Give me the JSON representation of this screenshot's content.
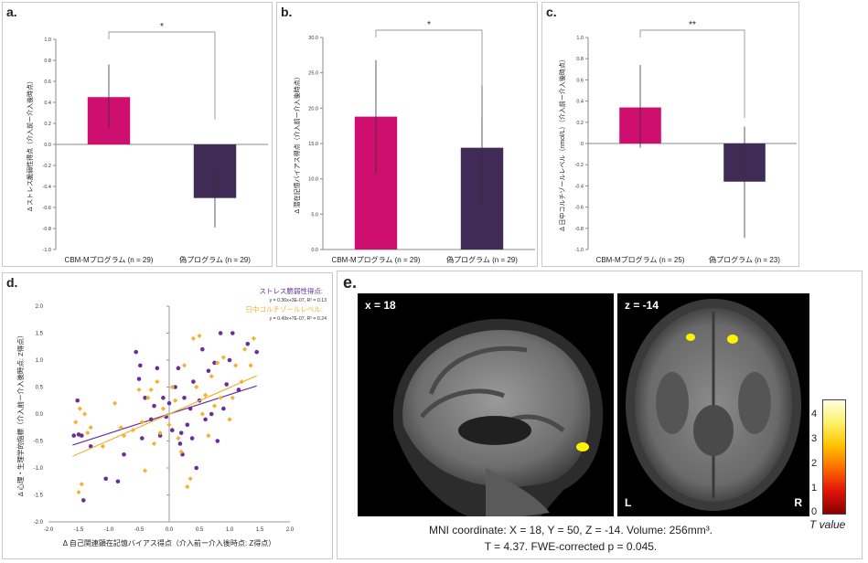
{
  "panels": {
    "a": {
      "label": "a."
    },
    "b": {
      "label": "b."
    },
    "c": {
      "label": "c."
    },
    "d": {
      "label": "d."
    },
    "e": {
      "label": "e."
    }
  },
  "chart_data": [
    {
      "id": "a",
      "type": "bar",
      "categories": [
        "CBM-Mプログラム (n = 29)",
        "偽プログラム (n = 29)"
      ],
      "values": [
        0.45,
        -0.51
      ],
      "error": [
        [
          0.15,
          0.76
        ],
        [
          -0.79,
          -0.23
        ]
      ],
      "colors": [
        "#cf0f6f",
        "#3f2b56"
      ],
      "ylabel": "Δ ストレス脆弱性得点（介入前ー介入後時点）",
      "ylim": [
        -1.0,
        1.0
      ],
      "yticks": [
        "1.0",
        "0.8",
        "0.6",
        "0.4",
        "0.2",
        "0.0",
        "-0.2",
        "-0.4",
        "-0.6",
        "-0.8",
        "-1.0"
      ],
      "significance": "*"
    },
    {
      "id": "b",
      "type": "bar",
      "categories": [
        "CBM-Mプログラム (n = 29)",
        "偽プログラム (n = 29)"
      ],
      "values": [
        18.8,
        14.4
      ],
      "error": [
        [
          10.8,
          26.8
        ],
        [
          5.6,
          23.2
        ]
      ],
      "colors": [
        "#cf0f6f",
        "#3f2b56"
      ],
      "ylabel": "Δ 潜在記憶バイアス得点（介入前ー介入後時点）",
      "ylim": [
        0,
        30
      ],
      "yticks": [
        "30.0",
        "25.0",
        "20.0",
        "15.0",
        "10.0",
        "5.0",
        "0.0"
      ],
      "significance": "*"
    },
    {
      "id": "c",
      "type": "bar",
      "categories": [
        "CBM-Mプログラム (n = 25)",
        "偽プログラム (n = 23)"
      ],
      "values": [
        0.34,
        -0.36
      ],
      "error": [
        [
          -0.04,
          0.74
        ],
        [
          -0.89,
          0.16
        ]
      ],
      "colors": [
        "#cf0f6f",
        "#3f2b56"
      ],
      "ylabel": "Δ 日中コルチゾールレベル（nmol/L）（介入前ー介入後時点）",
      "ylim": [
        -1.0,
        1.0
      ],
      "yticks": [
        "1.0",
        "0.8",
        "0.6",
        "0.4",
        "0.2",
        "0",
        "-0.2",
        "-0.4",
        "-0.6",
        "-0.8",
        "-1.0"
      ],
      "significance": "**"
    },
    {
      "id": "d",
      "type": "scatter",
      "xlabel": "Δ 自己関連顕在記憶バイアス得点（介入前ー介入後時点: Z得点）",
      "ylabel": "Δ 心理・生理学的指標（介入前ー介入後時点: Z得点）",
      "xlim": [
        -2.0,
        2.0
      ],
      "ylim": [
        -2.0,
        2.0
      ],
      "xticks": [
        "-2.0",
        "-1.5",
        "-1.0",
        "-0.5",
        "0.0",
        "0.5",
        "1.0",
        "1.5",
        "2.0"
      ],
      "yticks": [
        "2.0",
        "1.5",
        "1.0",
        "0.5",
        "0.0",
        "-0.5",
        "-1.0",
        "-1.5",
        "-2.0"
      ],
      "series": [
        {
          "name": "ストレス脆弱性得点:",
          "equation": "y = 0.36x+3E-07,  R² = 0.13",
          "color": "#6a2e9c",
          "fit": [
            0.36,
            0.0
          ],
          "points": [
            [
              -1.58,
              -0.4
            ],
            [
              -1.52,
              0.25
            ],
            [
              -1.5,
              -0.38
            ],
            [
              -1.45,
              -0.4
            ],
            [
              -1.42,
              -1.6
            ],
            [
              -1.3,
              -0.6
            ],
            [
              -1.05,
              -1.2
            ],
            [
              -0.85,
              -1.25
            ],
            [
              -0.75,
              -0.75
            ],
            [
              -0.55,
              1.15
            ],
            [
              -0.5,
              0.65
            ],
            [
              -0.48,
              0.9
            ],
            [
              -0.45,
              -0.45
            ],
            [
              -0.4,
              0.3
            ],
            [
              -0.3,
              -0.1
            ],
            [
              -0.25,
              0.15
            ],
            [
              -0.2,
              0.85
            ],
            [
              -0.15,
              -0.4
            ],
            [
              -0.1,
              0.3
            ],
            [
              -0.05,
              -0.05
            ],
            [
              0.0,
              0.2
            ],
            [
              0.05,
              -0.3
            ],
            [
              0.1,
              0.5
            ],
            [
              0.15,
              0.85
            ],
            [
              0.18,
              -0.55
            ],
            [
              0.2,
              -0.35
            ],
            [
              0.22,
              -0.75
            ],
            [
              0.25,
              0.3
            ],
            [
              0.3,
              -0.2
            ],
            [
              0.35,
              0.1
            ],
            [
              0.38,
              -0.45
            ],
            [
              0.4,
              0.6
            ],
            [
              0.45,
              -1.0
            ],
            [
              0.5,
              0.25
            ],
            [
              0.55,
              1.2
            ],
            [
              0.6,
              -0.1
            ],
            [
              0.65,
              0.8
            ],
            [
              0.7,
              0.0
            ],
            [
              0.75,
              0.95
            ],
            [
              0.8,
              -0.5
            ],
            [
              0.85,
              1.5
            ],
            [
              0.9,
              0.1
            ],
            [
              0.95,
              0.55
            ],
            [
              1.0,
              1.0
            ],
            [
              1.05,
              1.5
            ],
            [
              1.15,
              0.45
            ],
            [
              1.3,
              1.3
            ],
            [
              1.45,
              1.15
            ]
          ]
        },
        {
          "name": "日中コルチゾールレベル:",
          "equation": "y = 0.49x+7E-07,  R² = 0.24",
          "color": "#f2b233",
          "fit": [
            0.49,
            0.0
          ],
          "points": [
            [
              -1.55,
              -0.15
            ],
            [
              -1.5,
              -1.45
            ],
            [
              -1.48,
              0.1
            ],
            [
              -1.45,
              -1.3
            ],
            [
              -1.4,
              0.0
            ],
            [
              -1.35,
              -0.35
            ],
            [
              -1.3,
              -0.25
            ],
            [
              -1.1,
              -0.6
            ],
            [
              -0.9,
              0.2
            ],
            [
              -0.8,
              -0.25
            ],
            [
              -0.75,
              -0.4
            ],
            [
              -0.6,
              -0.3
            ],
            [
              -0.5,
              0.45
            ],
            [
              -0.45,
              -0.15
            ],
            [
              -0.4,
              -1.05
            ],
            [
              -0.35,
              0.3
            ],
            [
              -0.3,
              0.45
            ],
            [
              -0.25,
              -0.55
            ],
            [
              -0.2,
              0.6
            ],
            [
              -0.15,
              -0.35
            ],
            [
              -0.1,
              0.1
            ],
            [
              0.0,
              -0.2
            ],
            [
              0.05,
              0.5
            ],
            [
              0.1,
              0.25
            ],
            [
              0.15,
              -0.45
            ],
            [
              0.2,
              -0.7
            ],
            [
              0.25,
              0.9
            ],
            [
              0.3,
              -1.35
            ],
            [
              0.35,
              -1.2
            ],
            [
              0.4,
              1.4
            ],
            [
              0.45,
              0.5
            ],
            [
              0.5,
              1.45
            ],
            [
              0.55,
              0.0
            ],
            [
              0.6,
              0.35
            ],
            [
              0.65,
              -0.4
            ],
            [
              0.7,
              0.7
            ],
            [
              0.75,
              0.15
            ],
            [
              0.8,
              0.95
            ],
            [
              0.85,
              0.3
            ],
            [
              0.9,
              1.05
            ],
            [
              1.0,
              -0.1
            ],
            [
              1.05,
              0.3
            ],
            [
              1.1,
              0.9
            ],
            [
              1.2,
              0.6
            ],
            [
              1.25,
              1.2
            ],
            [
              1.35,
              0.9
            ],
            [
              1.4,
              1.4
            ]
          ]
        }
      ]
    }
  ],
  "brain": {
    "sagittal_label": "x = 18",
    "axial_label": "z = -14",
    "left_marker": "L",
    "right_marker": "R",
    "colorbar_ticks": [
      "4",
      "3",
      "2",
      "1",
      "0"
    ],
    "colorbar_title": "T value",
    "caption_line1": "MNI coordinate: X = 18, Y = 50, Z = -14. Volume: 256mm³.",
    "caption_line2": "T = 4.37. FWE-corrected p = 0.045."
  }
}
